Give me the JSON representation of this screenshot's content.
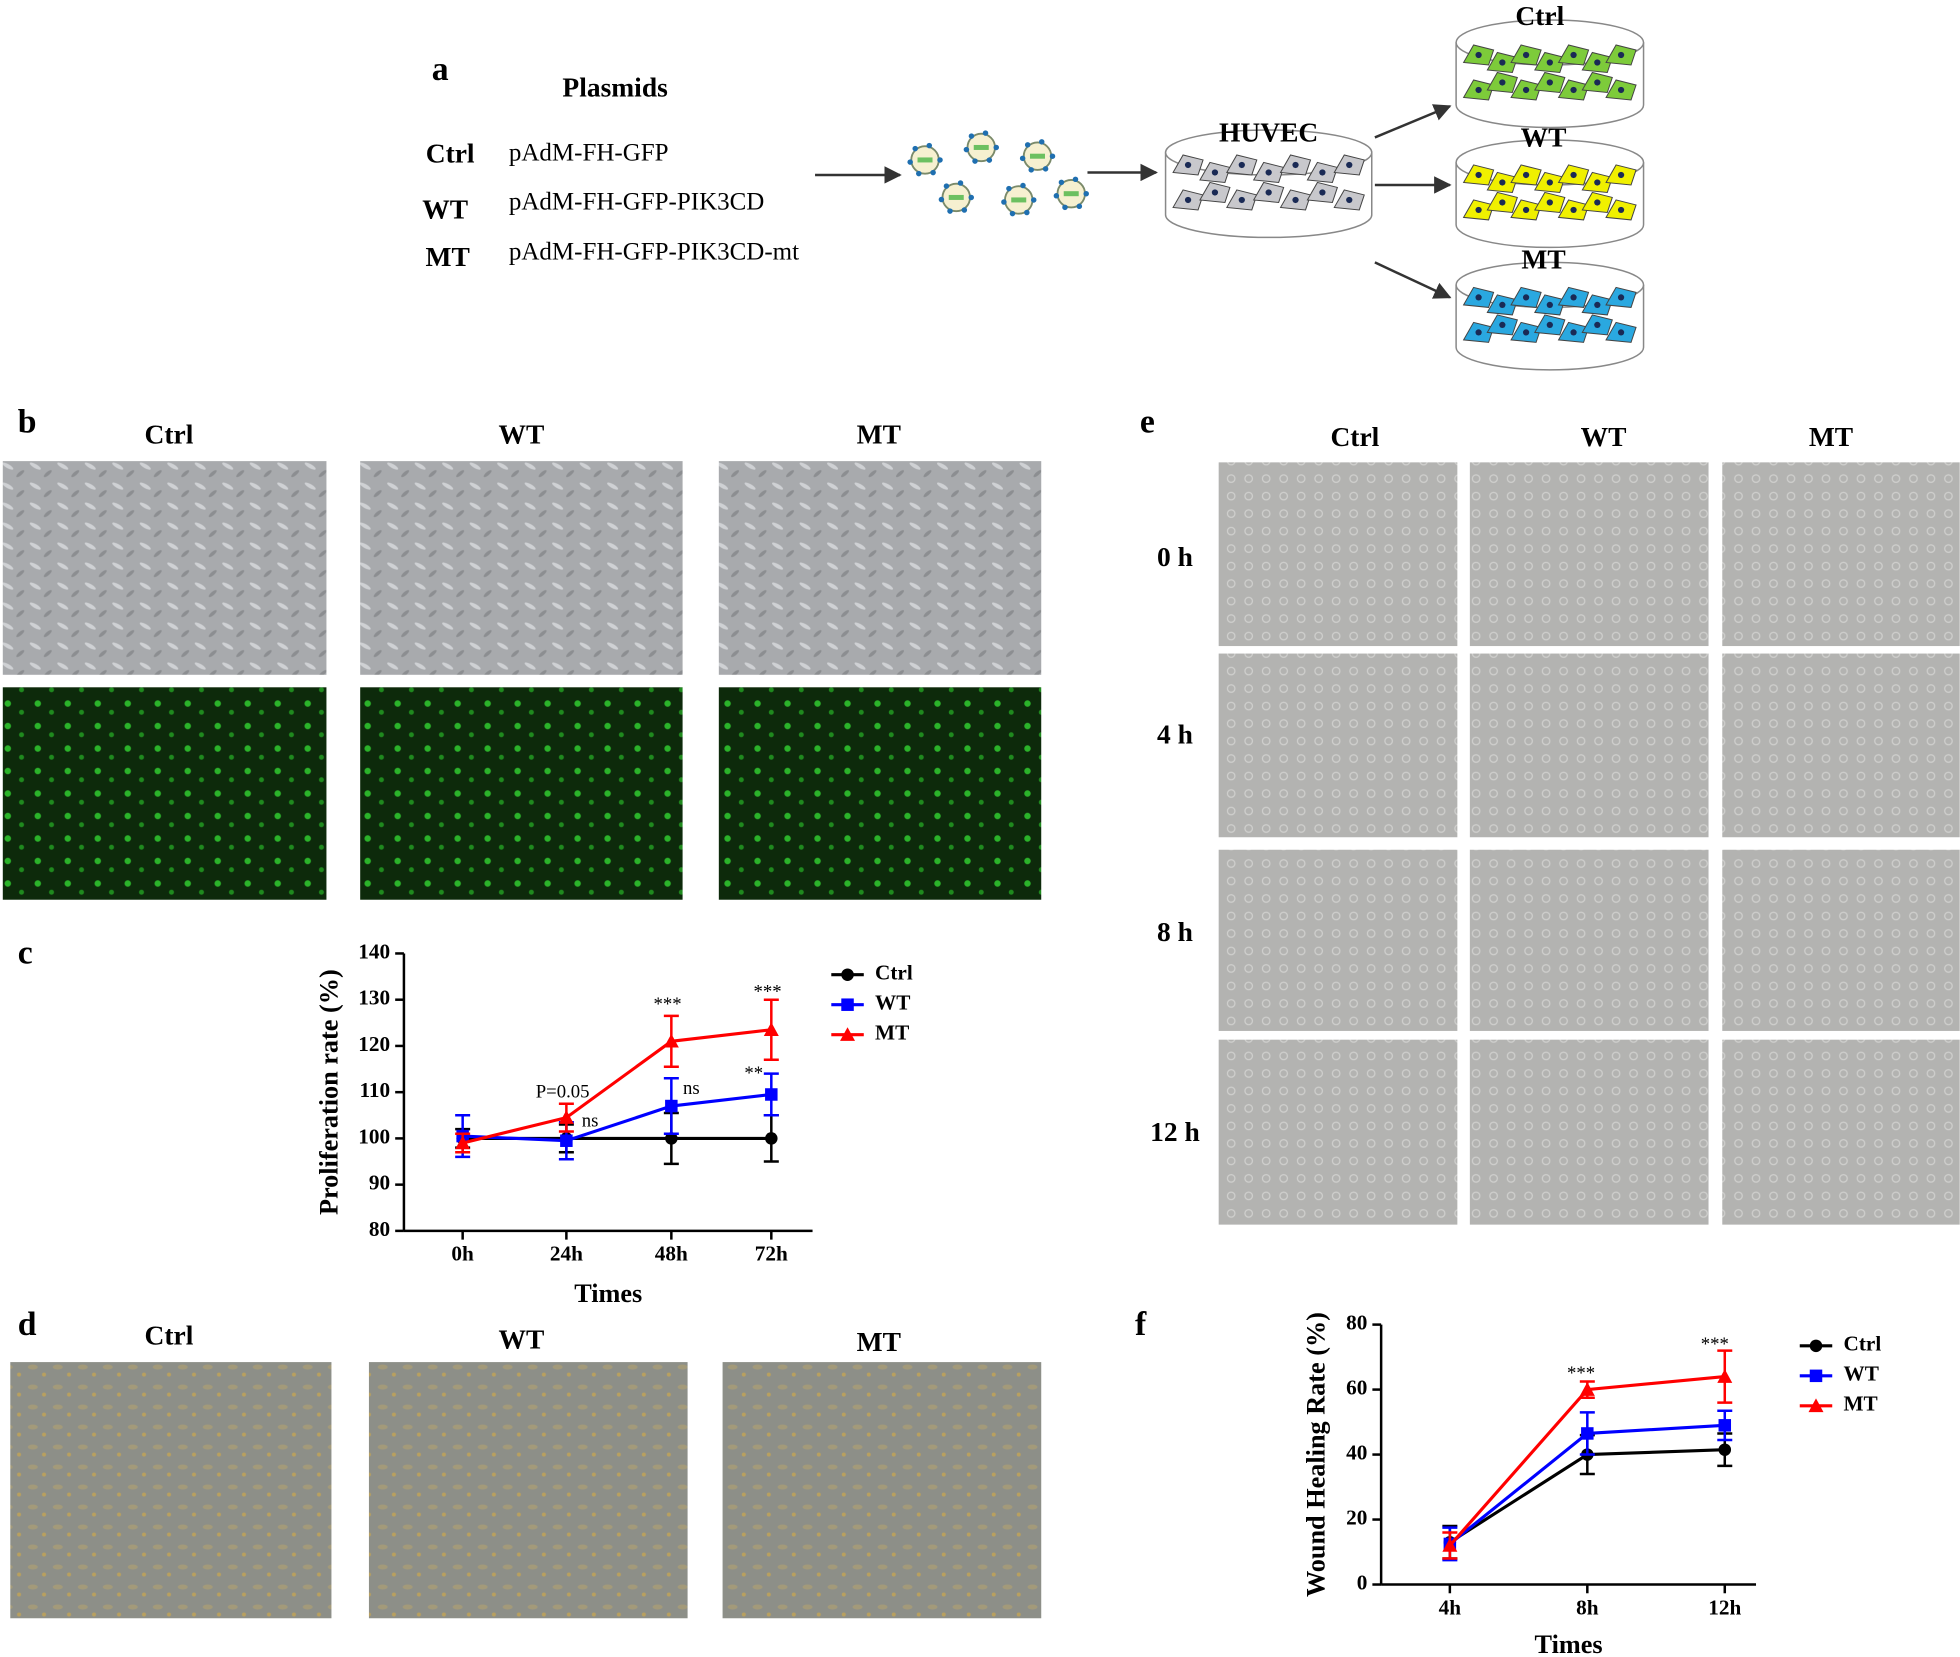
{
  "panel_a": {
    "label": "a",
    "heading": "Plasmids",
    "groups": [
      "Ctrl",
      "WT",
      "MT"
    ],
    "plasmids": [
      "pAdM-FH-GFP",
      "pAdM-FH-GFP-PIK3CD",
      "pAdM-FH-GFP-PIK3CD-mt"
    ],
    "cell_line": "HUVEC",
    "dishes": [
      "Ctrl",
      "WT",
      "MT"
    ]
  },
  "panel_b": {
    "label": "b",
    "columns": [
      "Ctrl",
      "WT",
      "MT"
    ]
  },
  "panel_d": {
    "label": "d",
    "columns": [
      "Ctrl",
      "WT",
      "MT"
    ]
  },
  "panel_e": {
    "label": "e",
    "columns": [
      "Ctrl",
      "WT",
      "MT"
    ],
    "rows": [
      "0 h",
      "4 h",
      "8 h",
      "12 h"
    ]
  },
  "chart_data": [
    {
      "type": "line",
      "panel_label": "c",
      "x_label": "Times",
      "y_label": "Proliferation rate (%)",
      "categories": [
        "0h",
        "24h",
        "48h",
        "72h"
      ],
      "ylim": [
        80,
        140
      ],
      "yticks": [
        80,
        90,
        100,
        110,
        120,
        130,
        140
      ],
      "series": [
        {
          "name": "Ctrl",
          "color": "#000000",
          "marker": "circle",
          "values": [
            100,
            100,
            100,
            100
          ],
          "errors": [
            2,
            3,
            5.5,
            5
          ]
        },
        {
          "name": "WT",
          "color": "#0000ff",
          "marker": "square",
          "values": [
            100.5,
            99.5,
            107,
            109.5
          ],
          "errors": [
            4.5,
            4,
            6,
            4.5
          ]
        },
        {
          "name": "MT",
          "color": "#ff0000",
          "marker": "triangle",
          "values": [
            99,
            104.5,
            121,
            123.5
          ],
          "errors": [
            2,
            3,
            5.5,
            6.5
          ]
        }
      ],
      "annotations": [
        "P=0.05",
        "ns",
        "***",
        "ns",
        "***",
        "**"
      ]
    },
    {
      "type": "line",
      "panel_label": "f",
      "x_label": "Times",
      "y_label": "Wound Healing Rate (%)",
      "categories": [
        "4h",
        "8h",
        "12h"
      ],
      "ylim": [
        0,
        80
      ],
      "yticks": [
        0,
        20,
        40,
        60,
        80
      ],
      "series": [
        {
          "name": "Ctrl",
          "color": "#000000",
          "marker": "circle",
          "values": [
            13,
            40,
            41.5
          ],
          "errors": [
            5,
            6,
            5
          ]
        },
        {
          "name": "WT",
          "color": "#0000ff",
          "marker": "square",
          "values": [
            12.5,
            46.5,
            49
          ],
          "errors": [
            5,
            6.5,
            4.5
          ]
        },
        {
          "name": "MT",
          "color": "#ff0000",
          "marker": "triangle",
          "values": [
            12,
            60,
            64
          ],
          "errors": [
            4,
            2.5,
            8
          ]
        }
      ],
      "annotations": [
        "***",
        "***"
      ]
    }
  ]
}
